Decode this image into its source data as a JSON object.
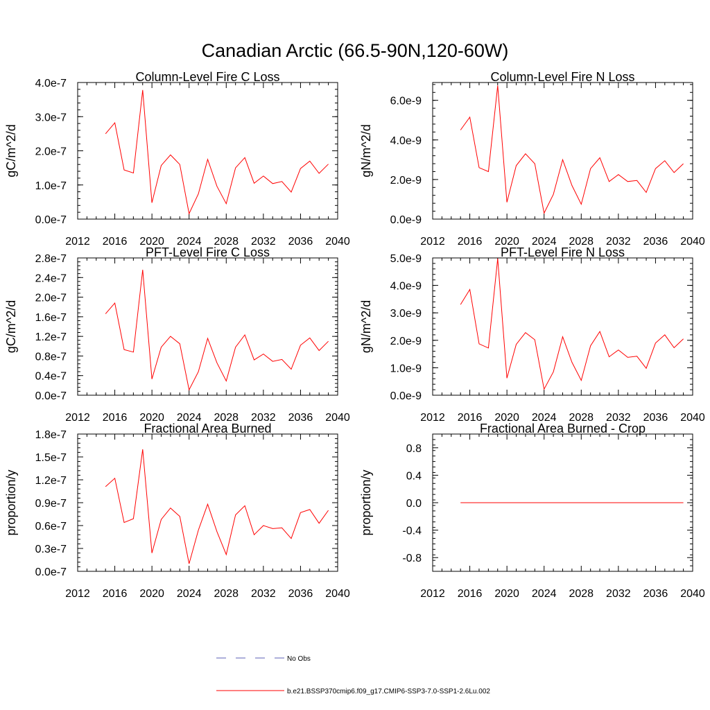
{
  "page_title": "Canadian Arctic (66.5-90N,120-60W)",
  "legend": {
    "entries": [
      {
        "label": "No Obs",
        "color": "#5b5fb4",
        "style": "dashed"
      },
      {
        "label": "b.e21.BSSP370cmip6.f09_g17.CMIP6-SSP3-7.0-SSP1-2.6Lu.002",
        "color": "#ff0000",
        "style": "solid"
      }
    ]
  },
  "chart_data": [
    {
      "type": "line",
      "title": "Column-Level Fire C Loss",
      "ylabel": "gC/m^2/d",
      "xlim": [
        2012,
        2040
      ],
      "ylim": [
        0,
        4e-07
      ],
      "xticks": [
        "2012",
        "2016",
        "2020",
        "2024",
        "2028",
        "2032",
        "2036",
        "2040"
      ],
      "yticks": [
        {
          "v": 0,
          "label": "0.0e-7"
        },
        {
          "v": 1e-07,
          "label": "1.0e-7"
        },
        {
          "v": 2e-07,
          "label": "2.0e-7"
        },
        {
          "v": 3e-07,
          "label": "3.0e-7"
        },
        {
          "v": 4e-07,
          "label": "4.0e-7"
        }
      ],
      "series": [
        {
          "color": "#ff0000",
          "x": [
            2015,
            2016,
            2017,
            2018,
            2019,
            2020,
            2021,
            2022,
            2023,
            2024,
            2025,
            2026,
            2027,
            2028,
            2029,
            2030,
            2031,
            2032,
            2033,
            2034,
            2035,
            2036,
            2037,
            2038,
            2039
          ],
          "y": [
            2.5e-07,
            2.82e-07,
            1.44e-07,
            1.35e-07,
            3.78e-07,
            4.8e-08,
            1.57e-07,
            1.88e-07,
            1.6e-07,
            1.6e-08,
            7.4e-08,
            1.75e-07,
            9.6e-08,
            4.5e-08,
            1.5e-07,
            1.8e-07,
            1.05e-07,
            1.26e-07,
            1.04e-07,
            1.1e-07,
            7.9e-08,
            1.48e-07,
            1.7e-07,
            1.34e-07,
            1.61e-07
          ]
        }
      ]
    },
    {
      "type": "line",
      "title": "Column-Level Fire N Loss",
      "ylabel": "gN/m^2/d",
      "xlim": [
        2012,
        2040
      ],
      "ylim": [
        0,
        6.9e-09
      ],
      "xticks": [
        "2012",
        "2016",
        "2020",
        "2024",
        "2028",
        "2032",
        "2036",
        "2040"
      ],
      "yticks": [
        {
          "v": 0,
          "label": "0.0e-9"
        },
        {
          "v": 2e-09,
          "label": "2.0e-9"
        },
        {
          "v": 4e-09,
          "label": "4.0e-9"
        },
        {
          "v": 6e-09,
          "label": "6.0e-9"
        }
      ],
      "series": [
        {
          "color": "#ff0000",
          "x": [
            2015,
            2016,
            2017,
            2018,
            2019,
            2020,
            2021,
            2022,
            2023,
            2024,
            2025,
            2026,
            2027,
            2028,
            2029,
            2030,
            2031,
            2032,
            2033,
            2034,
            2035,
            2036,
            2037,
            2038,
            2039
          ],
          "y": [
            4.5e-09,
            5.15e-09,
            2.6e-09,
            2.4e-09,
            6.75e-09,
            8.5e-10,
            2.7e-09,
            3.3e-09,
            2.8e-09,
            3e-10,
            1.25e-09,
            3e-09,
            1.7e-09,
            7.5e-10,
            2.55e-09,
            3.1e-09,
            1.9e-09,
            2.25e-09,
            1.9e-09,
            1.95e-09,
            1.35e-09,
            2.55e-09,
            2.95e-09,
            2.35e-09,
            2.8e-09
          ]
        }
      ]
    },
    {
      "type": "line",
      "title": "PFT-Level Fire C Loss",
      "ylabel": "gC/m^2/d",
      "xlim": [
        2012,
        2040
      ],
      "ylim": [
        0,
        2.8e-07
      ],
      "xticks": [
        "2012",
        "2016",
        "2020",
        "2024",
        "2028",
        "2032",
        "2036",
        "2040"
      ],
      "yticks": [
        {
          "v": 0,
          "label": "0.0e-7"
        },
        {
          "v": 4e-08,
          "label": "0.4e-7"
        },
        {
          "v": 8e-08,
          "label": "0.8e-7"
        },
        {
          "v": 1.2e-07,
          "label": "1.2e-7"
        },
        {
          "v": 1.6e-07,
          "label": "1.6e-7"
        },
        {
          "v": 2e-07,
          "label": "2.0e-7"
        },
        {
          "v": 2.4e-07,
          "label": "2.4e-7"
        },
        {
          "v": 2.8e-07,
          "label": "2.8e-7"
        }
      ],
      "series": [
        {
          "color": "#ff0000",
          "x": [
            2015,
            2016,
            2017,
            2018,
            2019,
            2020,
            2021,
            2022,
            2023,
            2024,
            2025,
            2026,
            2027,
            2028,
            2029,
            2030,
            2031,
            2032,
            2033,
            2034,
            2035,
            2036,
            2037,
            2038,
            2039
          ],
          "y": [
            1.66e-07,
            1.88e-07,
            9.3e-08,
            8.8e-08,
            2.56e-07,
            3.3e-08,
            9.8e-08,
            1.2e-07,
            1.05e-07,
            1.1e-08,
            4.8e-08,
            1.16e-07,
            6.6e-08,
            2.9e-08,
            9.8e-08,
            1.23e-07,
            7.2e-08,
            8.4e-08,
            6.9e-08,
            7.3e-08,
            5.3e-08,
            1.02e-07,
            1.17e-07,
            9.1e-08,
            1.1e-07
          ]
        }
      ]
    },
    {
      "type": "line",
      "title": "PFT-Level Fire N Loss",
      "ylabel": "gN/m^2/d",
      "xlim": [
        2012,
        2040
      ],
      "ylim": [
        0,
        5e-09
      ],
      "xticks": [
        "2012",
        "2016",
        "2020",
        "2024",
        "2028",
        "2032",
        "2036",
        "2040"
      ],
      "yticks": [
        {
          "v": 0,
          "label": "0.0e-9"
        },
        {
          "v": 1e-09,
          "label": "1.0e-9"
        },
        {
          "v": 2e-09,
          "label": "2.0e-9"
        },
        {
          "v": 3e-09,
          "label": "3.0e-9"
        },
        {
          "v": 4e-09,
          "label": "4.0e-9"
        },
        {
          "v": 5e-09,
          "label": "5.0e-9"
        }
      ],
      "series": [
        {
          "color": "#ff0000",
          "x": [
            2015,
            2016,
            2017,
            2018,
            2019,
            2020,
            2021,
            2022,
            2023,
            2024,
            2025,
            2026,
            2027,
            2028,
            2029,
            2030,
            2031,
            2032,
            2033,
            2034,
            2035,
            2036,
            2037,
            2038,
            2039
          ],
          "y": [
            3.3e-09,
            3.85e-09,
            1.87e-09,
            1.72e-09,
            4.98e-09,
            6.2e-10,
            1.85e-09,
            2.28e-09,
            2.02e-09,
            2.2e-10,
            8.5e-10,
            2.13e-09,
            1.2e-09,
            5.4e-10,
            1.8e-09,
            2.32e-09,
            1.4e-09,
            1.65e-09,
            1.38e-09,
            1.42e-09,
            9.8e-10,
            1.9e-09,
            2.2e-09,
            1.73e-09,
            2.05e-09
          ]
        }
      ]
    },
    {
      "type": "line",
      "title": "Fractional Area Burned",
      "ylabel": "proportion/y",
      "xlim": [
        2012,
        2040
      ],
      "ylim": [
        0,
        1.8e-07
      ],
      "xticks": [
        "2012",
        "2016",
        "2020",
        "2024",
        "2028",
        "2032",
        "2036",
        "2040"
      ],
      "yticks": [
        {
          "v": 0,
          "label": "0.0e-7"
        },
        {
          "v": 3e-08,
          "label": "0.3e-7"
        },
        {
          "v": 6e-08,
          "label": "0.6e-7"
        },
        {
          "v": 9e-08,
          "label": "0.9e-7"
        },
        {
          "v": 1.2e-07,
          "label": "1.2e-7"
        },
        {
          "v": 1.5e-07,
          "label": "1.5e-7"
        },
        {
          "v": 1.8e-07,
          "label": "1.8e-7"
        }
      ],
      "series": [
        {
          "color": "#ff0000",
          "x": [
            2015,
            2016,
            2017,
            2018,
            2019,
            2020,
            2021,
            2022,
            2023,
            2024,
            2025,
            2026,
            2027,
            2028,
            2029,
            2030,
            2031,
            2032,
            2033,
            2034,
            2035,
            2036,
            2037,
            2038,
            2039
          ],
          "y": [
            1.11e-07,
            1.22e-07,
            6.4e-08,
            6.9e-08,
            1.6e-07,
            2.4e-08,
            6.8e-08,
            8.3e-08,
            7.2e-08,
            1e-08,
            5.4e-08,
            8.8e-08,
            5.2e-08,
            2.2e-08,
            7.4e-08,
            8.6e-08,
            4.8e-08,
            6e-08,
            5.6e-08,
            5.7e-08,
            4.3e-08,
            7.7e-08,
            8.1e-08,
            6.3e-08,
            8e-08
          ]
        }
      ]
    },
    {
      "type": "line",
      "title": "Fractional Area Burned - Crop",
      "ylabel": "proportion/y",
      "xlim": [
        2012,
        2040
      ],
      "ylim": [
        -1.0,
        1.0
      ],
      "xticks": [
        "2012",
        "2016",
        "2020",
        "2024",
        "2028",
        "2032",
        "2036",
        "2040"
      ],
      "yticks": [
        {
          "v": -0.8,
          "label": "-0.8"
        },
        {
          "v": -0.4,
          "label": "-0.4"
        },
        {
          "v": 0,
          "label": "0.0"
        },
        {
          "v": 0.4,
          "label": "0.4"
        },
        {
          "v": 0.8,
          "label": "0.8"
        }
      ],
      "series": [
        {
          "color": "#ff0000",
          "x": [
            2015,
            2016,
            2017,
            2018,
            2019,
            2020,
            2021,
            2022,
            2023,
            2024,
            2025,
            2026,
            2027,
            2028,
            2029,
            2030,
            2031,
            2032,
            2033,
            2034,
            2035,
            2036,
            2037,
            2038,
            2039
          ],
          "y": [
            0,
            0,
            0,
            0,
            0,
            0,
            0,
            0,
            0,
            0,
            0,
            0,
            0,
            0,
            0,
            0,
            0,
            0,
            0,
            0,
            0,
            0,
            0,
            0,
            0
          ]
        }
      ]
    }
  ]
}
